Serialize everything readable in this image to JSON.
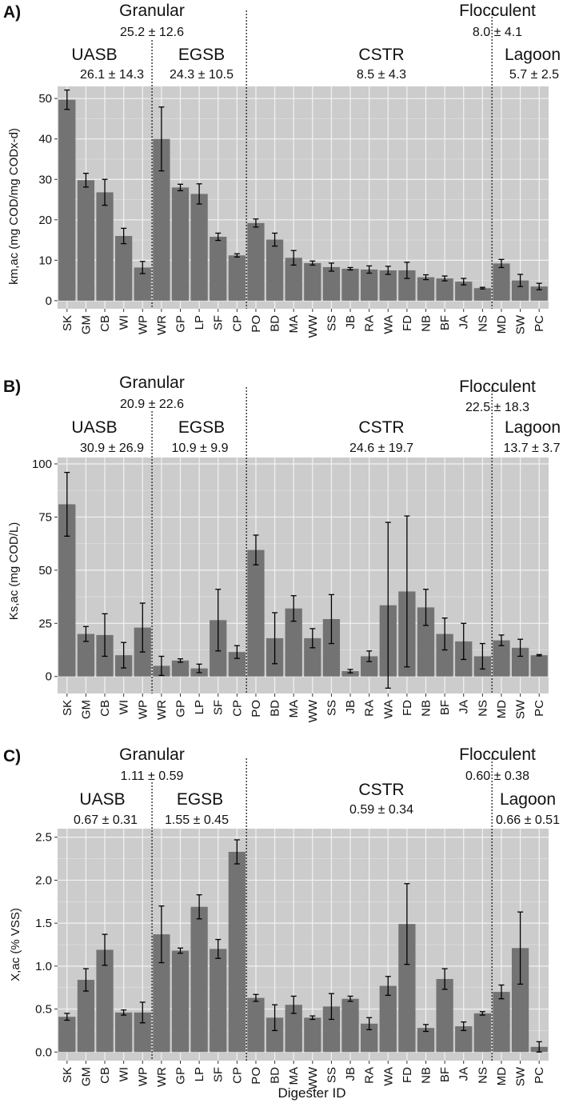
{
  "x_axis_title": "Digester ID",
  "chart_data": [
    {
      "type": "bar",
      "panel_label": "A)",
      "ylabel": "km,ac (mg COD/mg CODx-d)",
      "ylim": [
        -2,
        53
      ],
      "yticks": [
        0,
        10,
        20,
        30,
        40,
        50
      ],
      "ytick_labels": [
        "0",
        "10",
        "20",
        "30",
        "40",
        "50"
      ],
      "categories": [
        "SK",
        "GM",
        "CB",
        "WI",
        "WP",
        "WR",
        "GP",
        "LP",
        "SF",
        "CP",
        "PO",
        "BD",
        "MA",
        "WW",
        "SS",
        "JB",
        "RA",
        "WA",
        "FD",
        "NB",
        "BF",
        "JA",
        "NS",
        "MD",
        "SW",
        "PC"
      ],
      "values": [
        49.7,
        29.8,
        26.8,
        16.0,
        8.2,
        40.0,
        28.0,
        26.4,
        15.8,
        11.2,
        19.2,
        15.1,
        10.6,
        9.3,
        8.3,
        7.9,
        7.7,
        7.5,
        7.5,
        5.8,
        5.5,
        4.7,
        3.1,
        9.2,
        5.0,
        3.5
      ],
      "errors": [
        2.4,
        1.7,
        3.2,
        1.9,
        1.5,
        7.9,
        0.8,
        2.5,
        0.9,
        0.4,
        1.0,
        1.6,
        1.8,
        0.5,
        1.0,
        0.3,
        0.9,
        1.0,
        2.0,
        0.6,
        0.6,
        0.8,
        0.2,
        1.0,
        1.5,
        0.8
      ],
      "groups": {
        "granular": {
          "name": "Granular",
          "stat": "25.2 ± 12.6"
        },
        "flocculent": {
          "name": "Flocculent",
          "stat": "8.0 ± 4.1"
        },
        "uasb": {
          "name": "UASB",
          "stat": "26.1 ± 14.3"
        },
        "egsb": {
          "name": "EGSB",
          "stat": "24.3 ± 10.5"
        },
        "cstr": {
          "name": "CSTR",
          "stat": "8.5 ± 4.3"
        },
        "lagoon": {
          "name": "Lagoon",
          "stat": "5.7 ± 2.5"
        }
      }
    },
    {
      "type": "bar",
      "panel_label": "B)",
      "ylabel": "Ks,ac (mg COD/L)",
      "ylim": [
        -8,
        103
      ],
      "yticks": [
        0,
        25,
        50,
        75,
        100
      ],
      "ytick_labels": [
        "0",
        "25",
        "50",
        "75",
        "100"
      ],
      "categories": [
        "SK",
        "GM",
        "CB",
        "WI",
        "WP",
        "WR",
        "GP",
        "LP",
        "SF",
        "CP",
        "PO",
        "BD",
        "MA",
        "WW",
        "SS",
        "JB",
        "RA",
        "WA",
        "FD",
        "NB",
        "BF",
        "JA",
        "NS",
        "MD",
        "SW",
        "PC"
      ],
      "values": [
        81.0,
        20.0,
        19.5,
        10.0,
        23.0,
        5.0,
        7.5,
        3.8,
        26.5,
        11.5,
        59.5,
        18.0,
        32.0,
        18.0,
        27.0,
        2.5,
        9.5,
        33.5,
        40.0,
        32.5,
        20.0,
        16.5,
        9.5,
        17.0,
        13.5,
        10.0
      ],
      "errors": [
        15.0,
        3.5,
        10.0,
        6.0,
        11.5,
        4.5,
        0.8,
        2.0,
        14.5,
        3.0,
        7.0,
        12.0,
        6.0,
        4.5,
        11.5,
        0.8,
        2.5,
        39.0,
        35.5,
        8.5,
        7.5,
        8.5,
        6.0,
        2.5,
        4.0,
        0.3
      ],
      "groups": {
        "granular": {
          "name": "Granular",
          "stat": "20.9 ± 22.6"
        },
        "flocculent": {
          "name": "Flocculent",
          "stat": "22.5 ± 18.3"
        },
        "uasb": {
          "name": "UASB",
          "stat": "30.9 ± 26.9"
        },
        "egsb": {
          "name": "EGSB",
          "stat": "10.9 ± 9.9"
        },
        "cstr": {
          "name": "CSTR",
          "stat": "24.6 ± 19.7"
        },
        "lagoon": {
          "name": "Lagoon",
          "stat": "13.7 ± 3.7"
        }
      }
    },
    {
      "type": "bar",
      "panel_label": "C)",
      "ylabel": "X,ac (% VSS)",
      "ylim": [
        -0.1,
        2.6
      ],
      "yticks": [
        0,
        0.5,
        1.0,
        1.5,
        2.0,
        2.5
      ],
      "ytick_labels": [
        "0.0",
        "0.5",
        "1.0",
        "1.5",
        "2.0",
        "2.5"
      ],
      "categories": [
        "SK",
        "GM",
        "CB",
        "WI",
        "WP",
        "WR",
        "GP",
        "LP",
        "SF",
        "CP",
        "PO",
        "BD",
        "MA",
        "WW",
        "SS",
        "JB",
        "RA",
        "WA",
        "FD",
        "NB",
        "BF",
        "JA",
        "NS",
        "MD",
        "SW",
        "PC"
      ],
      "values": [
        0.41,
        0.84,
        1.19,
        0.46,
        0.46,
        1.37,
        1.18,
        1.69,
        1.2,
        2.33,
        0.63,
        0.4,
        0.55,
        0.4,
        0.53,
        0.62,
        0.33,
        0.77,
        1.49,
        0.28,
        0.85,
        0.3,
        0.45,
        0.7,
        1.21,
        0.06
      ],
      "errors": [
        0.04,
        0.13,
        0.18,
        0.03,
        0.12,
        0.33,
        0.03,
        0.14,
        0.11,
        0.14,
        0.04,
        0.15,
        0.1,
        0.02,
        0.15,
        0.03,
        0.07,
        0.11,
        0.47,
        0.04,
        0.12,
        0.05,
        0.02,
        0.08,
        0.42,
        0.06
      ],
      "groups": {
        "granular": {
          "name": "Granular",
          "stat": "1.11 ± 0.59"
        },
        "flocculent": {
          "name": "Flocculent",
          "stat": "0.60 ± 0.38"
        },
        "uasb": {
          "name": "UASB",
          "stat": "0.67 ± 0.31"
        },
        "egsb": {
          "name": "EGSB",
          "stat": "1.55 ± 0.45"
        },
        "cstr": {
          "name": "CSTR",
          "stat": "0.59 ± 0.34"
        },
        "lagoon": {
          "name": "Lagoon",
          "stat": "0.66 ± 0.51"
        }
      }
    }
  ]
}
